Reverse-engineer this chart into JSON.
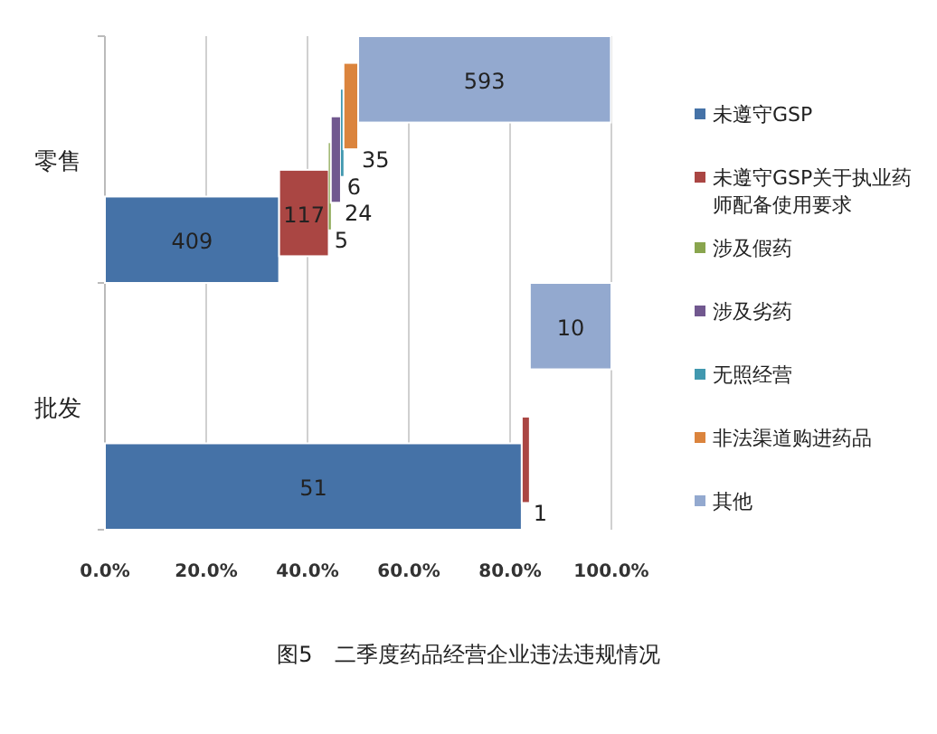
{
  "chart_data": {
    "type": "bar",
    "orientation": "horizontal",
    "stacked": true,
    "title": "图5　二季度药品经营企业违法违规情况",
    "categories": [
      "零售",
      "批发"
    ],
    "series": [
      {
        "name": "未遵守GSP",
        "color": "#4572a7",
        "values": [
          34.4,
          82.3
        ]
      },
      {
        "name": "未遵守GSP关于执业药师配备使用要求",
        "color": "#aa4643",
        "values": [
          9.8,
          1.6
        ]
      },
      {
        "name": "涉及假药",
        "color": "#89a54e",
        "values": [
          0.4,
          0
        ]
      },
      {
        "name": "涉及劣药",
        "color": "#71588f",
        "values": [
          2.0,
          0
        ]
      },
      {
        "name": "无照经营",
        "color": "#4198af",
        "values": [
          0.5,
          0
        ]
      },
      {
        "name": "非法渠道购进药品",
        "color": "#db843d",
        "values": [
          2.9,
          0
        ]
      },
      {
        "name": "其他",
        "color": "#93a9cf",
        "values": [
          49.9,
          16.1
        ]
      }
    ],
    "annotations": [
      "409",
      "117",
      "5",
      "24",
      "6",
      "35",
      "593",
      "51",
      "1",
      "10"
    ],
    "xlim": [
      0,
      100
    ],
    "xticks": [
      {
        "value": 0,
        "label": "0.0%"
      },
      {
        "value": 20,
        "label": "20.0%"
      },
      {
        "value": 40,
        "label": "40.0%"
      },
      {
        "value": 60,
        "label": "60.0%"
      },
      {
        "value": 80,
        "label": "80.0%"
      },
      {
        "value": 100,
        "label": "100.0%"
      }
    ],
    "grid": "x",
    "legend": "right"
  }
}
